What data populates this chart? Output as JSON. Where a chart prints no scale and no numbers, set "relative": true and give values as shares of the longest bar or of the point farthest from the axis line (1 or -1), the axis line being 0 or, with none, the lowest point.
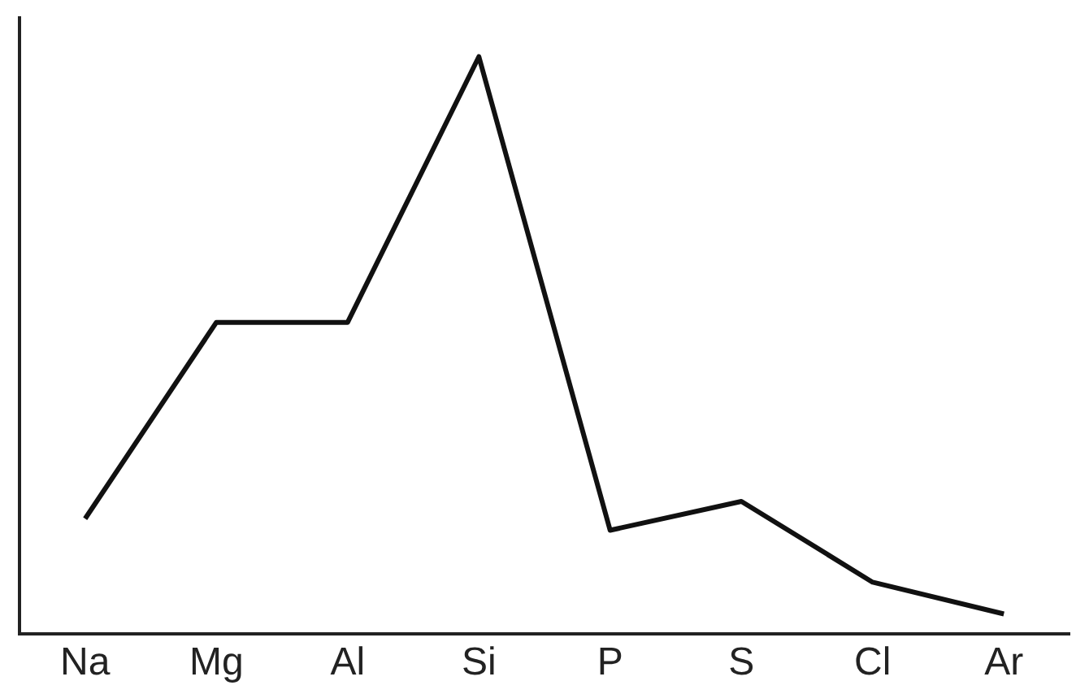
{
  "chart_data": {
    "type": "line",
    "relative": true,
    "categories": [
      "Na",
      "Mg",
      "Al",
      "Si",
      "P",
      "S",
      "Cl",
      "Ar"
    ],
    "series": [
      {
        "color": "#111111",
        "values": [
          0.2,
          0.54,
          0.54,
          1,
          0.18,
          0.23,
          0.09,
          0.035
        ]
      }
    ],
    "grid": false,
    "legend": false,
    "marker": "none",
    "line_style": "solid"
  }
}
